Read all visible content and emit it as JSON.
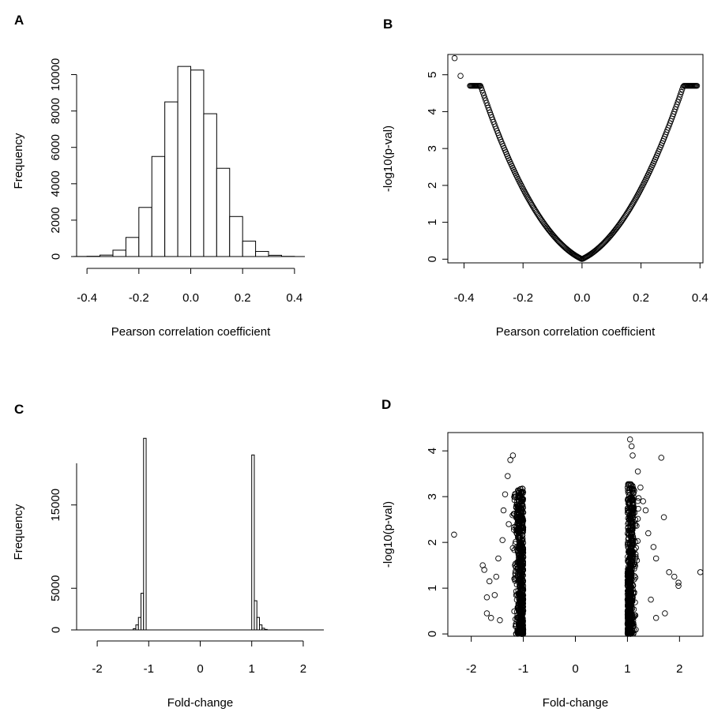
{
  "panels": {
    "A": {
      "label": "A"
    },
    "B": {
      "label": "B"
    },
    "C": {
      "label": "C"
    },
    "D": {
      "label": "D"
    }
  },
  "chart_data": [
    {
      "id": "A",
      "type": "bar",
      "title": "",
      "xlabel": "Pearson correlation coefficient",
      "ylabel": "Frequency",
      "xlim": [
        -0.44,
        0.44
      ],
      "ylim": [
        0,
        10500
      ],
      "x_ticks": [
        -0.4,
        -0.2,
        0.0,
        0.2,
        0.4
      ],
      "x_tick_labels": [
        "-0.4",
        "-0.2",
        "0.0",
        "0.2",
        "0.4"
      ],
      "y_ticks": [
        0,
        2000,
        4000,
        6000,
        8000,
        10000
      ],
      "y_tick_labels": [
        "0",
        "2000",
        "4000",
        "6000",
        "8000",
        "10000"
      ],
      "bin_width": 0.05,
      "bins": [
        {
          "x0": -0.45,
          "value": 5
        },
        {
          "x0": -0.4,
          "value": 15
        },
        {
          "x0": -0.35,
          "value": 80
        },
        {
          "x0": -0.3,
          "value": 350
        },
        {
          "x0": -0.25,
          "value": 1050
        },
        {
          "x0": -0.2,
          "value": 2700
        },
        {
          "x0": -0.15,
          "value": 5500
        },
        {
          "x0": -0.1,
          "value": 8500
        },
        {
          "x0": -0.05,
          "value": 10450
        },
        {
          "x0": 0.0,
          "value": 10250
        },
        {
          "x0": 0.05,
          "value": 7850
        },
        {
          "x0": 0.1,
          "value": 4850
        },
        {
          "x0": 0.15,
          "value": 2200
        },
        {
          "x0": 0.2,
          "value": 850
        },
        {
          "x0": 0.25,
          "value": 280
        },
        {
          "x0": 0.3,
          "value": 70
        },
        {
          "x0": 0.35,
          "value": 10
        }
      ],
      "grid": false
    },
    {
      "id": "B",
      "type": "scatter",
      "title": "",
      "xlabel": "Pearson correlation coefficient",
      "ylabel": "-log10(p-val)",
      "xlim": [
        -0.455,
        0.41
      ],
      "ylim": [
        -0.1,
        5.55
      ],
      "x_ticks": [
        -0.4,
        -0.2,
        0.0,
        0.2,
        0.4
      ],
      "x_tick_labels": [
        "-0.4",
        "-0.2",
        "0.0",
        "0.2",
        "0.4"
      ],
      "y_ticks": [
        0,
        1,
        2,
        3,
        4,
        5
      ],
      "y_tick_labels": [
        "0",
        "1",
        "2",
        "3",
        "4",
        "5"
      ],
      "curve": {
        "description_free": true,
        "x_min": -0.38,
        "x_max": 0.39,
        "anchors": [
          [
            -0.38,
            4.25
          ],
          [
            -0.3,
            3.05
          ],
          [
            -0.2,
            1.75
          ],
          [
            -0.1,
            0.75
          ],
          [
            0.0,
            0.0
          ],
          [
            0.1,
            0.75
          ],
          [
            0.2,
            1.75
          ],
          [
            0.3,
            3.05
          ],
          [
            0.39,
            4.6
          ]
        ]
      },
      "outliers": [
        [
          -0.432,
          5.45
        ],
        [
          -0.412,
          4.97
        ]
      ],
      "grid": false
    },
    {
      "id": "C",
      "type": "bar",
      "title": "",
      "xlabel": "Fold-change",
      "ylabel": "Frequency",
      "xlim": [
        -2.4,
        2.4
      ],
      "ylim": [
        0,
        23500
      ],
      "x_ticks": [
        -2,
        -1,
        0,
        1,
        2
      ],
      "x_tick_labels": [
        "-2",
        "-1",
        "0",
        "1",
        "2"
      ],
      "y_ticks": [
        0,
        5000,
        15000
      ],
      "y_tick_labels": [
        "0",
        "5000",
        "15000"
      ],
      "bin_width": 0.05,
      "bins": [
        {
          "x0": -1.3,
          "value": 150
        },
        {
          "x0": -1.25,
          "value": 600
        },
        {
          "x0": -1.2,
          "value": 1500
        },
        {
          "x0": -1.15,
          "value": 4400
        },
        {
          "x0": -1.1,
          "value": 23000
        },
        {
          "x0": 1.0,
          "value": 21000
        },
        {
          "x0": 1.05,
          "value": 3500
        },
        {
          "x0": 1.1,
          "value": 1500
        },
        {
          "x0": 1.15,
          "value": 600
        },
        {
          "x0": 1.2,
          "value": 200
        },
        {
          "x0": 1.25,
          "value": 60
        }
      ],
      "grid": false
    },
    {
      "id": "D",
      "type": "scatter",
      "title": "",
      "xlabel": "Fold-change",
      "ylabel": "-log10(p-val)",
      "xlim": [
        -2.45,
        2.45
      ],
      "ylim": [
        -0.05,
        4.4
      ],
      "x_ticks": [
        -2,
        -1,
        0,
        1,
        2
      ],
      "x_tick_labels": [
        "-2",
        "-1",
        "0",
        "1",
        "2"
      ],
      "y_ticks": [
        0,
        1,
        2,
        3,
        4
      ],
      "y_tick_labels": [
        "0",
        "1",
        "2",
        "3",
        "4"
      ],
      "outliers": [
        [
          -2.33,
          2.17
        ],
        [
          -1.75,
          1.4
        ],
        [
          -1.78,
          1.5
        ],
        [
          -1.7,
          0.8
        ],
        [
          -1.65,
          1.15
        ],
        [
          -1.7,
          0.45
        ],
        [
          -1.62,
          0.35
        ],
        [
          -1.55,
          0.85
        ],
        [
          -1.52,
          1.25
        ],
        [
          -1.48,
          1.65
        ],
        [
          -1.45,
          0.3
        ],
        [
          -1.4,
          2.05
        ],
        [
          -1.38,
          2.7
        ],
        [
          -1.35,
          3.05
        ],
        [
          -1.3,
          3.45
        ],
        [
          -1.25,
          3.8
        ],
        [
          -1.2,
          3.9
        ],
        [
          -1.28,
          2.4
        ],
        [
          1.05,
          4.25
        ],
        [
          1.08,
          4.1
        ],
        [
          1.1,
          3.9
        ],
        [
          1.2,
          3.55
        ],
        [
          1.25,
          3.2
        ],
        [
          1.3,
          2.9
        ],
        [
          1.35,
          2.7
        ],
        [
          1.4,
          2.2
        ],
        [
          1.5,
          1.9
        ],
        [
          1.55,
          1.65
        ],
        [
          1.45,
          0.75
        ],
        [
          1.55,
          0.35
        ],
        [
          1.65,
          3.85
        ],
        [
          1.7,
          2.55
        ],
        [
          1.72,
          0.45
        ],
        [
          1.8,
          1.35
        ],
        [
          1.9,
          1.25
        ],
        [
          1.98,
          1.12
        ],
        [
          1.98,
          1.05
        ],
        [
          2.4,
          1.35
        ]
      ],
      "clusters": [
        {
          "center": -1.0,
          "side": "neg",
          "max_y": 3.9
        },
        {
          "center": 1.0,
          "side": "pos",
          "max_y": 4.0
        }
      ],
      "grid": false
    }
  ]
}
